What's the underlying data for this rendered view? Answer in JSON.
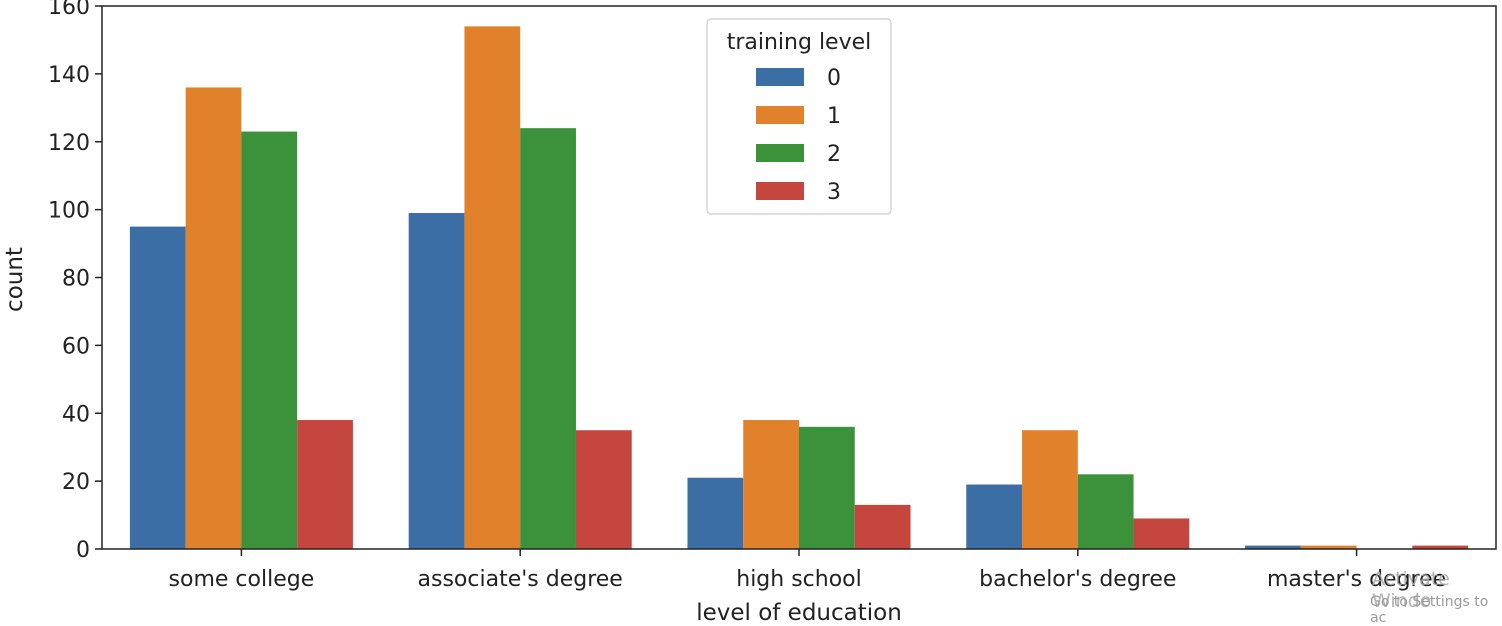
{
  "chart_data": {
    "type": "bar",
    "xlabel": "level of education",
    "ylabel": "count",
    "categories": [
      "some college",
      "associate's degree",
      "high school",
      "bachelor's degree",
      "master's degree"
    ],
    "ylim": [
      0,
      160
    ],
    "yticks": [
      0,
      20,
      40,
      60,
      80,
      100,
      120,
      140,
      160
    ],
    "legend": {
      "title": "training level",
      "placement": "top-center"
    },
    "series": [
      {
        "name": "0",
        "color": "#3a6ea5",
        "values": [
          95,
          99,
          21,
          19,
          1
        ]
      },
      {
        "name": "1",
        "color": "#e1812c",
        "values": [
          136,
          154,
          38,
          35,
          1
        ]
      },
      {
        "name": "2",
        "color": "#3b923b",
        "values": [
          123,
          124,
          36,
          22,
          0
        ]
      },
      {
        "name": "3",
        "color": "#c4463f",
        "values": [
          38,
          35,
          13,
          9,
          1
        ]
      }
    ]
  },
  "watermark": {
    "title": "Activate Windo",
    "subtitle": "Go to Settings to ac"
  }
}
